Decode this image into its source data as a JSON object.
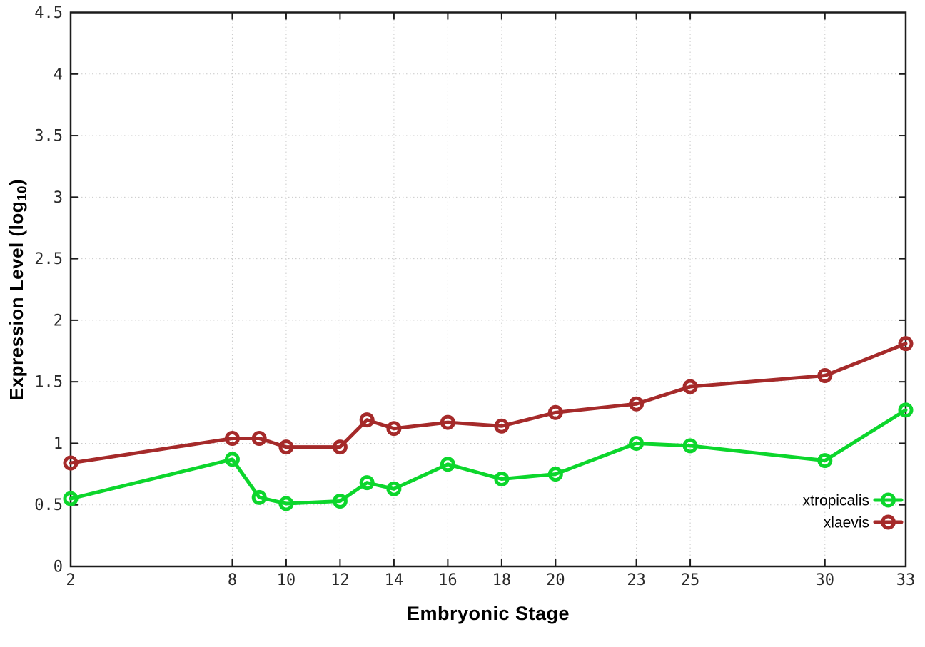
{
  "chart_data": {
    "type": "line",
    "title": "",
    "xlabel": "Embryonic Stage",
    "ylabel": {
      "pre": "Expression Level (log",
      "sub": "10",
      "post": ")"
    },
    "x": [
      2,
      8,
      9,
      10,
      12,
      13,
      14,
      16,
      18,
      20,
      23,
      25,
      30,
      33
    ],
    "series": [
      {
        "name": "xtropicalis",
        "color": "#0cd62c",
        "values": [
          0.55,
          0.87,
          0.56,
          0.51,
          0.53,
          0.68,
          0.63,
          0.83,
          0.71,
          0.75,
          1.0,
          0.98,
          0.86,
          1.27
        ]
      },
      {
        "name": "xlaevis",
        "color": "#a52a2a",
        "values": [
          0.84,
          1.04,
          1.04,
          0.97,
          0.97,
          1.19,
          1.12,
          1.17,
          1.14,
          1.25,
          1.32,
          1.46,
          1.55,
          1.81
        ]
      }
    ],
    "xlim": [
      2,
      33
    ],
    "ylim": [
      0,
      4.5
    ],
    "xticks": {
      "values": [
        2,
        8,
        10,
        12,
        14,
        16,
        18,
        20,
        23,
        25,
        30,
        33
      ],
      "labels": [
        "2",
        "8",
        "10",
        "12",
        "14",
        "16",
        "18",
        "20",
        "23",
        "25",
        "30",
        "33"
      ]
    },
    "yticks": {
      "values": [
        0,
        0.5,
        1,
        1.5,
        2,
        2.5,
        3,
        3.5,
        4,
        4.5
      ],
      "labels": [
        "0",
        "0.5",
        "1",
        "1.5",
        "2",
        "2.5",
        "3",
        "3.5",
        "4",
        "4.5"
      ]
    },
    "grid": true,
    "legend_position": "inside-bottom-right",
    "colors": {
      "grid": "#c9c9c9",
      "axis": "#1c1c1c",
      "tick_text": "#2b2b2b",
      "xtropicalis": "#0cd62c",
      "xlaevis": "#a52a2a"
    }
  }
}
